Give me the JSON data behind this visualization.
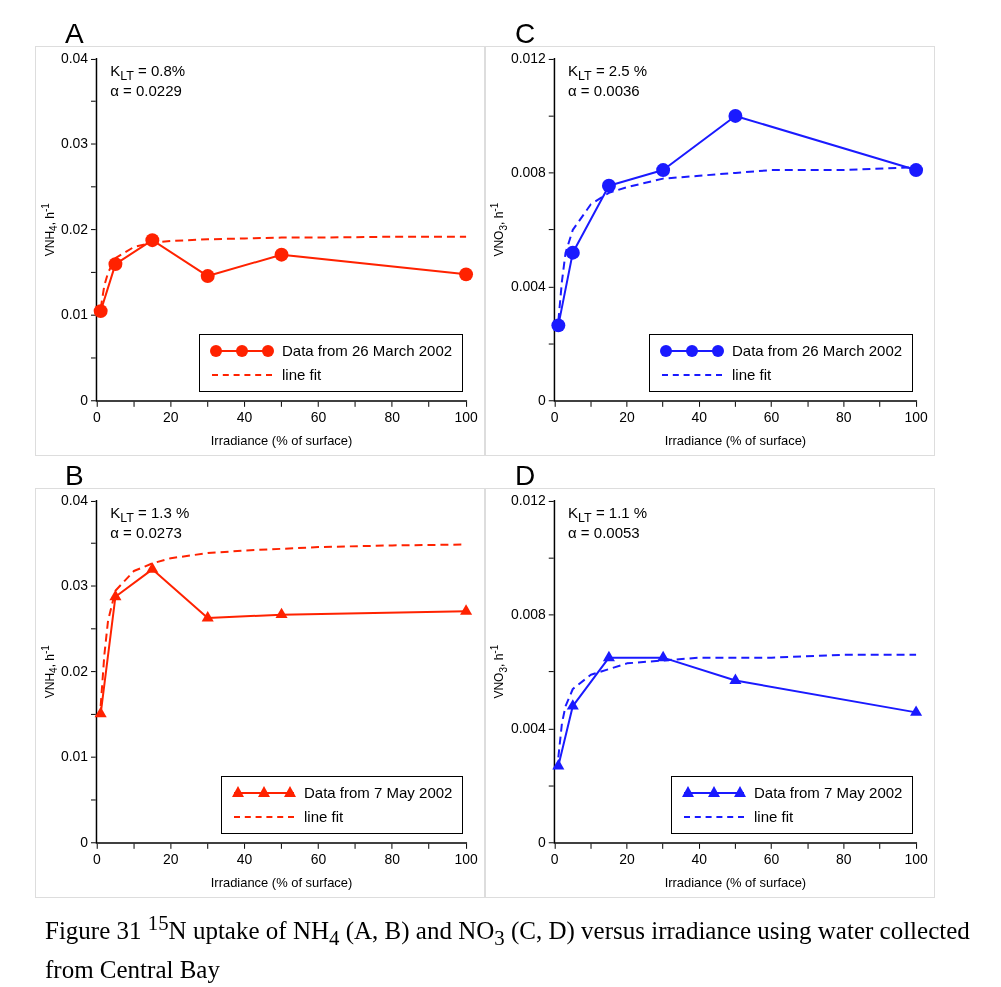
{
  "chart_data": [
    {
      "type": "line",
      "title": "A",
      "xlabel": "Irradiance (% of surface)",
      "ylabel": "VNH$_{4}$, h$^{-1}$",
      "annotations": [
        "K$_{LT}$ = 0.8%",
        "α = 0.0229"
      ],
      "xlim": [
        0,
        100
      ],
      "ylim": [
        0,
        0.04
      ],
      "xticks": [
        0,
        {
          "value": 10,
          "label": null
        },
        20,
        {
          "value": 30,
          "label": null
        },
        40,
        {
          "value": 50,
          "label": null
        },
        60,
        {
          "value": 70,
          "label": null
        },
        80,
        {
          "value": 90,
          "label": null
        },
        100
      ],
      "yticks": [
        0,
        {
          "value": 0.005,
          "label": null
        },
        0.01,
        {
          "value": 0.015,
          "label": null
        },
        0.02,
        {
          "value": 0.025,
          "label": null
        },
        0.03,
        {
          "value": 0.035,
          "label": null
        },
        0.04
      ],
      "legend": "bottom right",
      "series": [
        {
          "name": "Data from 26 March 2002",
          "color": "#ff2200",
          "marker": "circle",
          "line_style": "solid",
          "x": [
            1,
            5,
            15,
            30,
            50,
            100
          ],
          "values": [
            0.0105,
            0.016,
            0.0188,
            0.0146,
            0.0171,
            0.0148
          ]
        },
        {
          "name": "line fit",
          "color": "#ff2200",
          "marker": "none",
          "line_style": "dashed",
          "x": [
            1,
            2,
            3,
            5,
            10,
            15,
            20,
            30,
            40,
            50,
            60,
            80,
            100
          ],
          "values": [
            0.0108,
            0.0135,
            0.015,
            0.0167,
            0.018,
            0.0185,
            0.0187,
            0.0189,
            0.019,
            0.0191,
            0.0191,
            0.0192,
            0.0192
          ]
        }
      ]
    },
    {
      "type": "line",
      "title": "C",
      "xlabel": "Irradiance (% of surface)",
      "ylabel": "VNO$_{3}$, h$^{-1}$",
      "annotations": [
        "K$_{LT}$ = 2.5 %",
        "α = 0.0036"
      ],
      "xlim": [
        0,
        100
      ],
      "ylim": [
        0,
        0.012
      ],
      "xticks": [
        0,
        {
          "value": 10,
          "label": null
        },
        20,
        {
          "value": 30,
          "label": null
        },
        40,
        {
          "value": 50,
          "label": null
        },
        60,
        {
          "value": 70,
          "label": null
        },
        80,
        {
          "value": 90,
          "label": null
        },
        100
      ],
      "yticks": [
        0,
        {
          "value": 0.002,
          "label": null
        },
        0.004,
        {
          "value": 0.006,
          "label": null
        },
        0.008,
        {
          "value": 0.01,
          "label": null
        },
        0.012
      ],
      "legend": "bottom right",
      "series": [
        {
          "name": "Data from 26 March 2002",
          "color": "#1a1aff",
          "marker": "circle",
          "line_style": "solid",
          "x": [
            1,
            5,
            15,
            30,
            50,
            100
          ],
          "values": [
            0.00265,
            0.0052,
            0.00755,
            0.0081,
            0.01,
            0.0081
          ]
        },
        {
          "name": "line fit",
          "color": "#1a1aff",
          "marker": "none",
          "line_style": "dashed",
          "x": [
            1,
            2,
            3,
            5,
            10,
            15,
            20,
            30,
            40,
            50,
            60,
            80,
            100
          ],
          "values": [
            0.0028,
            0.0042,
            0.0052,
            0.006,
            0.0069,
            0.0073,
            0.0075,
            0.0078,
            0.0079,
            0.008,
            0.0081,
            0.0081,
            0.0082
          ]
        }
      ]
    },
    {
      "type": "line",
      "title": "B",
      "xlabel": "Irradiance (% of surface)",
      "ylabel": "VNH$_{4}$, h$^{-1}$",
      "annotations": [
        "K$_{LT}$ = 1.3 %",
        "α = 0.0273"
      ],
      "xlim": [
        0,
        100
      ],
      "ylim": [
        0,
        0.04
      ],
      "xticks": [
        0,
        {
          "value": 10,
          "label": null
        },
        20,
        {
          "value": 30,
          "label": null
        },
        40,
        {
          "value": 50,
          "label": null
        },
        60,
        {
          "value": 70,
          "label": null
        },
        80,
        {
          "value": 90,
          "label": null
        },
        100
      ],
      "yticks": [
        0,
        {
          "value": 0.005,
          "label": null
        },
        0.01,
        {
          "value": 0.015,
          "label": null
        },
        0.02,
        {
          "value": 0.025,
          "label": null
        },
        0.03,
        {
          "value": 0.035,
          "label": null
        },
        0.04
      ],
      "legend": "bottom right",
      "series": [
        {
          "name": "Data from 7 May 2002",
          "color": "#ff2200",
          "marker": "triangle",
          "line_style": "solid",
          "x": [
            1,
            5,
            15,
            30,
            50,
            100
          ],
          "values": [
            0.0151,
            0.0288,
            0.032,
            0.0263,
            0.0267,
            0.0271
          ]
        },
        {
          "name": "line fit",
          "color": "#ff2200",
          "marker": "none",
          "line_style": "dashed",
          "x": [
            1,
            2,
            3,
            5,
            10,
            15,
            20,
            30,
            40,
            50,
            60,
            80,
            100
          ],
          "values": [
            0.016,
            0.022,
            0.026,
            0.0295,
            0.0318,
            0.0327,
            0.0333,
            0.0339,
            0.0342,
            0.0344,
            0.0346,
            0.0348,
            0.0349
          ]
        }
      ]
    },
    {
      "type": "line",
      "title": "D",
      "xlabel": "Irradiance (% of surface)",
      "ylabel": "VNO$_{3}$, h$^{-1}$",
      "annotations": [
        "K$_{LT}$ = 1.1 %",
        "α = 0.0053"
      ],
      "xlim": [
        0,
        100
      ],
      "ylim": [
        0,
        0.012
      ],
      "xticks": [
        0,
        {
          "value": 10,
          "label": null
        },
        20,
        {
          "value": 30,
          "label": null
        },
        40,
        {
          "value": 50,
          "label": null
        },
        60,
        {
          "value": 70,
          "label": null
        },
        80,
        {
          "value": 90,
          "label": null
        },
        100
      ],
      "yticks": [
        0,
        {
          "value": 0.002,
          "label": null
        },
        0.004,
        {
          "value": 0.006,
          "label": null
        },
        0.008,
        {
          "value": 0.01,
          "label": null
        },
        0.012
      ],
      "legend": "bottom right",
      "series": [
        {
          "name": "Data from 7 May 2002",
          "color": "#1a1aff",
          "marker": "triangle",
          "line_style": "solid",
          "x": [
            1,
            5,
            15,
            30,
            50,
            100
          ],
          "values": [
            0.0027,
            0.0048,
            0.0065,
            0.0065,
            0.0057,
            0.00458
          ]
        },
        {
          "name": "line fit",
          "color": "#1a1aff",
          "marker": "none",
          "line_style": "dashed",
          "x": [
            1,
            2,
            3,
            5,
            10,
            15,
            20,
            30,
            40,
            50,
            60,
            80,
            100
          ],
          "values": [
            0.003,
            0.0042,
            0.0048,
            0.0054,
            0.0059,
            0.0061,
            0.0063,
            0.0064,
            0.0065,
            0.0065,
            0.0065,
            0.0066,
            0.0066
          ]
        }
      ]
    },
    {
      "type": "other",
      "annotations": [
        "Figure 31 $^{15}$N uptake of NH$_{4}$ (A, B) and NO$_{3}$ (C, D) versus irradiance using water collected from Central Bay"
      ]
    }
  ]
}
